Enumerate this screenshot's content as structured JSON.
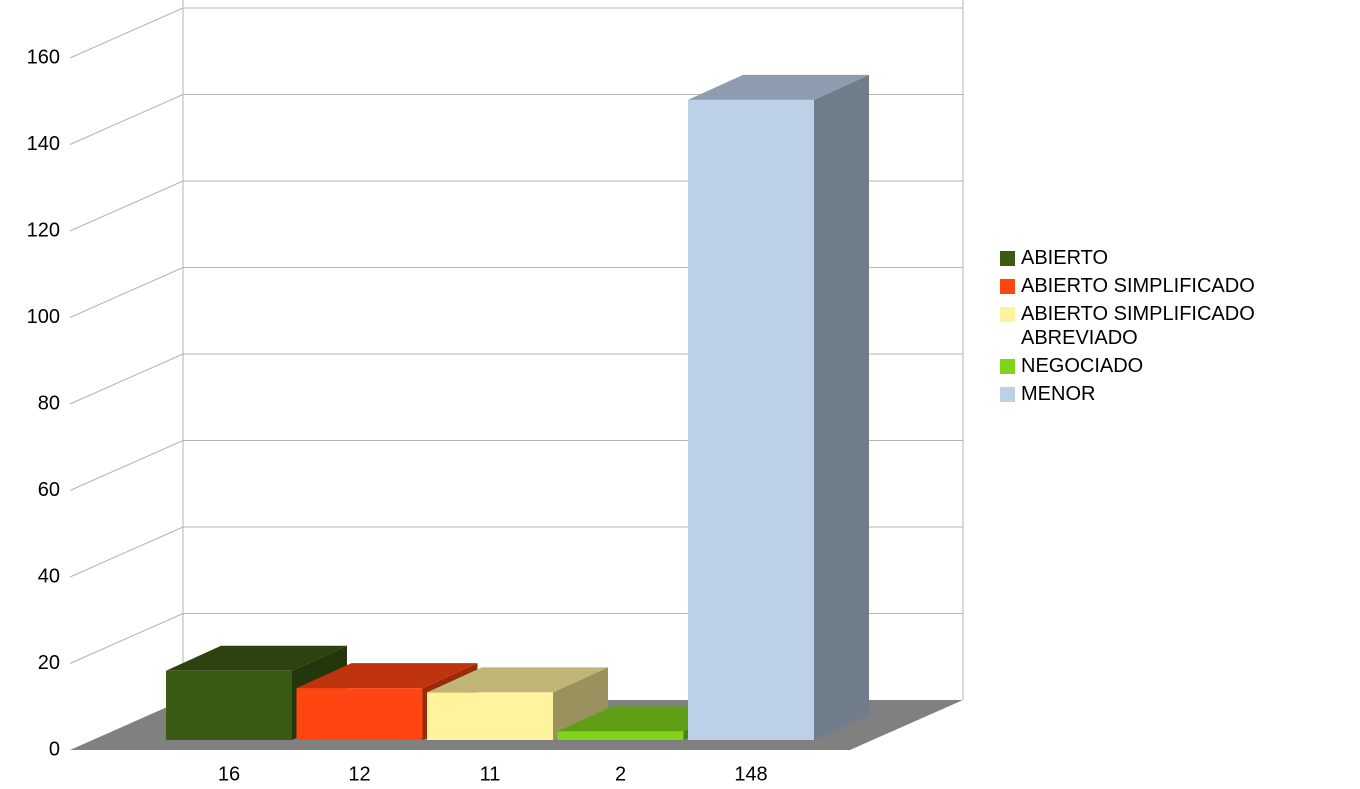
{
  "chart_data": {
    "type": "bar3d",
    "categories": [
      "16",
      "12",
      "11",
      "2",
      "148"
    ],
    "series": [
      {
        "name": "ABIERTO",
        "color": "#3b5a14",
        "values": [
          16,
          null,
          null,
          null,
          null
        ]
      },
      {
        "name": "ABIERTO SIMPLIFICADO",
        "color": "#ff4612",
        "values": [
          null,
          12,
          null,
          null,
          null
        ]
      },
      {
        "name": "ABIERTO SIMPLIFICADO ABREVIADO",
        "color": "#fff39e",
        "values": [
          null,
          null,
          11,
          null,
          null
        ]
      },
      {
        "name": "NEGOCIADO",
        "color": "#80d41c",
        "values": [
          null,
          null,
          null,
          2,
          null
        ]
      },
      {
        "name": "MENOR",
        "color": "#bcd1e8",
        "values": [
          null,
          null,
          null,
          null,
          148
        ]
      }
    ],
    "ylim": [
      0,
      160
    ],
    "yticks": [
      0,
      20,
      40,
      60,
      80,
      100,
      120,
      140,
      160
    ],
    "grid": true,
    "legend": "right"
  }
}
